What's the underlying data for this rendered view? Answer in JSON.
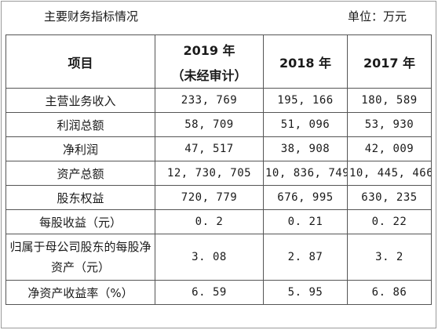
{
  "header": {
    "title": "主要财务指标情况",
    "unit": "单位：万元"
  },
  "table": {
    "columns": [
      {
        "line1": "项目",
        "line2": ""
      },
      {
        "line1": "2019 年",
        "line2": "（未经审计）"
      },
      {
        "line1": "2018 年",
        "line2": ""
      },
      {
        "line1": "2017 年",
        "line2": ""
      }
    ],
    "rows": [
      {
        "label": "主营业务收入",
        "v2019": "233, 769",
        "v2018": "195, 166",
        "v2017": "180, 589"
      },
      {
        "label": "利润总额",
        "v2019": "58, 709",
        "v2018": "51, 096",
        "v2017": "53, 930"
      },
      {
        "label": "净利润",
        "v2019": "47, 517",
        "v2018": "38, 908",
        "v2017": "42, 009"
      },
      {
        "label": "资产总额",
        "v2019": "12, 730, 705",
        "v2018": "10, 836, 749",
        "v2017": "10, 445, 466"
      },
      {
        "label": "股东权益",
        "v2019": "720, 779",
        "v2018": "676, 995",
        "v2017": "630, 235"
      },
      {
        "label": "每股收益（元）",
        "v2019": "0. 2",
        "v2018": "0. 21",
        "v2017": "0. 22"
      },
      {
        "label": "归属于母公司股东的每股净资产（元）",
        "v2019": "3. 08",
        "v2018": "2. 87",
        "v2017": "3. 2"
      },
      {
        "label": "净资产收益率（%）",
        "v2019": "6. 59",
        "v2018": "5. 95",
        "v2017": "6. 86"
      }
    ]
  }
}
